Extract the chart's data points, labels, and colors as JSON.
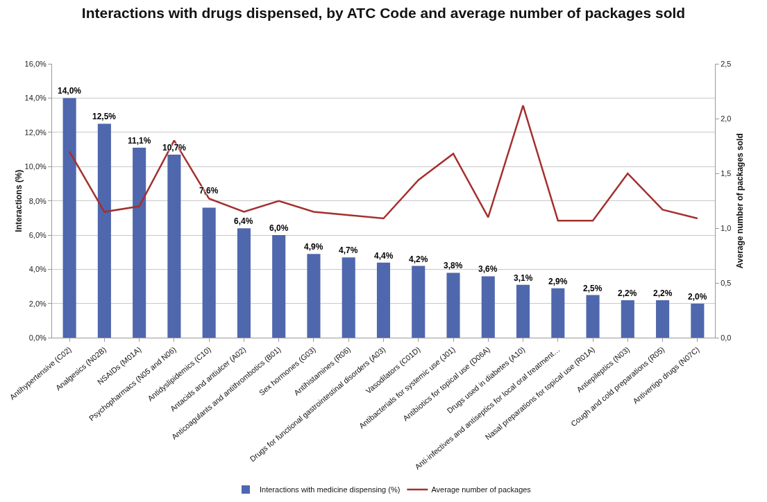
{
  "chart_data": {
    "type": "bar",
    "title": "Interactions with drugs dispensed, by ATC Code and average number of packages sold",
    "ylabel": "Interactions (%)",
    "y2label": "Average number of packages sold",
    "categories": [
      "Antihypertensive (C02)",
      "Analgesics (N02B)",
      "NSAIDs (M01A)",
      "Psychopharmacs (N05 and N06)",
      "Antidyslipidemics (C10)",
      "Antacids and antiulcer (A02)",
      "Anticoagulants and antithrombotics (B01)",
      "Sex hormones (G03)",
      "Antihistamines (R06)",
      "Drugs for functional gastrointestinal disorders (A03)",
      "Vasodilators (C01D)",
      "Antibacterials for systemic use (J01)",
      "Antibiotics for topical use (D06A)",
      "Drugs used in diabetes (A10)",
      "Anti-infectives and antiseptics for local oral treatment…",
      "Nasal preparations for topical use (R01A)",
      "Antiepileptics (N03)",
      "Cough and cold preparations (R05)",
      "Antivertigo drugs (N07C)"
    ],
    "series": [
      {
        "name": "Interactions with medicine dispensing (%)",
        "color": "#4f67ad",
        "values": [
          14.0,
          12.5,
          11.1,
          10.7,
          7.6,
          6.4,
          6.0,
          4.9,
          4.7,
          4.4,
          4.2,
          3.8,
          3.6,
          3.1,
          2.9,
          2.5,
          2.2,
          2.2,
          2.0
        ],
        "value_labels": [
          "14,0%",
          "12,5%",
          "11,1%",
          "10,7%",
          "7,6%",
          "6,4%",
          "6,0%",
          "4,9%",
          "4,7%",
          "4,4%",
          "4,2%",
          "3,8%",
          "3,6%",
          "3,1%",
          "2,9%",
          "2,5%",
          "2,2%",
          "2,2%",
          "2,0%"
        ]
      },
      {
        "name": "Average number of packages",
        "type": "line",
        "axis": "y2",
        "color": "#a3302e",
        "values": [
          1.7,
          1.15,
          1.2,
          1.8,
          1.27,
          1.15,
          1.25,
          1.15,
          1.12,
          1.09,
          1.44,
          1.68,
          1.1,
          2.12,
          1.07,
          1.07,
          1.5,
          1.17,
          1.09
        ]
      }
    ],
    "ylim": [
      0,
      16
    ],
    "yticks": [
      {
        "value": 0,
        "label": "0,0%"
      },
      {
        "value": 2,
        "label": "2,0%"
      },
      {
        "value": 4,
        "label": "4,0%"
      },
      {
        "value": 6,
        "label": "6,0%"
      },
      {
        "value": 8,
        "label": "8,0%"
      },
      {
        "value": 10,
        "label": "10,0%"
      },
      {
        "value": 12,
        "label": "12,0%"
      },
      {
        "value": 14,
        "label": "14,0%"
      },
      {
        "value": 16,
        "label": "16,0%"
      }
    ],
    "y2lim": [
      0,
      2.5
    ],
    "y2ticks": [
      {
        "value": 0,
        "label": "0,0"
      },
      {
        "value": 0.5,
        "label": "0,5"
      },
      {
        "value": 1,
        "label": "1,0"
      },
      {
        "value": 1.5,
        "label": "1,5"
      },
      {
        "value": 2,
        "label": "2,0"
      },
      {
        "value": 2.5,
        "label": "2,5"
      }
    ],
    "grid": "y",
    "legend": "bottom",
    "marker": "none",
    "line_style": "solid"
  }
}
